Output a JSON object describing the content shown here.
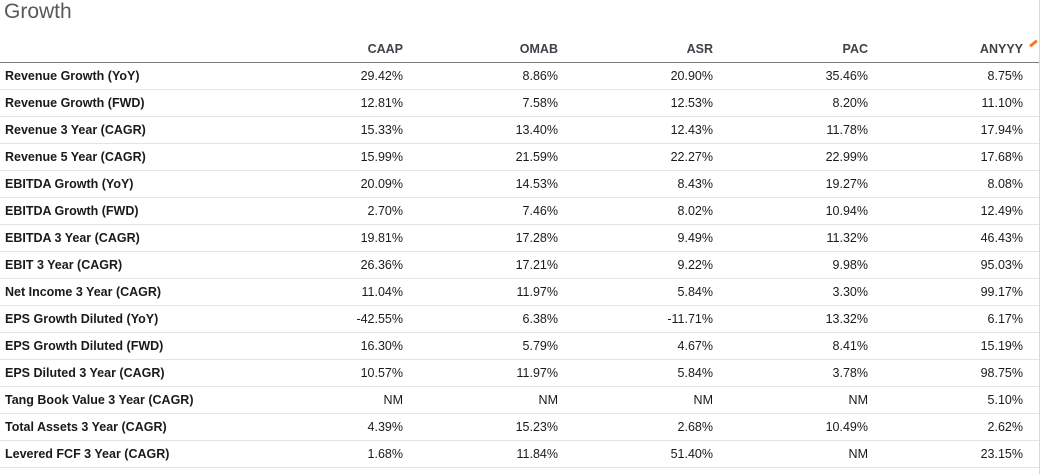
{
  "chart_data": {
    "type": "table",
    "title": "Growth",
    "columns": [
      "CAAP",
      "OMAB",
      "ASR",
      "PAC",
      "ANYYY"
    ],
    "rows": [
      {
        "label": "Revenue Growth (YoY)",
        "values": [
          "29.42%",
          "8.86%",
          "20.90%",
          "35.46%",
          "8.75%"
        ]
      },
      {
        "label": "Revenue Growth (FWD)",
        "values": [
          "12.81%",
          "7.58%",
          "12.53%",
          "8.20%",
          "11.10%"
        ]
      },
      {
        "label": "Revenue 3 Year (CAGR)",
        "values": [
          "15.33%",
          "13.40%",
          "12.43%",
          "11.78%",
          "17.94%"
        ]
      },
      {
        "label": "Revenue 5 Year (CAGR)",
        "values": [
          "15.99%",
          "21.59%",
          "22.27%",
          "22.99%",
          "17.68%"
        ]
      },
      {
        "label": "EBITDA Growth (YoY)",
        "values": [
          "20.09%",
          "14.53%",
          "8.43%",
          "19.27%",
          "8.08%"
        ]
      },
      {
        "label": "EBITDA Growth (FWD)",
        "values": [
          "2.70%",
          "7.46%",
          "8.02%",
          "10.94%",
          "12.49%"
        ]
      },
      {
        "label": "EBITDA 3 Year (CAGR)",
        "values": [
          "19.81%",
          "17.28%",
          "9.49%",
          "11.32%",
          "46.43%"
        ]
      },
      {
        "label": "EBIT 3 Year (CAGR)",
        "values": [
          "26.36%",
          "17.21%",
          "9.22%",
          "9.98%",
          "95.03%"
        ]
      },
      {
        "label": "Net Income 3 Year (CAGR)",
        "values": [
          "11.04%",
          "11.97%",
          "5.84%",
          "3.30%",
          "99.17%"
        ]
      },
      {
        "label": "EPS Growth Diluted (YoY)",
        "values": [
          "-42.55%",
          "6.38%",
          "-11.71%",
          "13.32%",
          "6.17%"
        ]
      },
      {
        "label": "EPS Growth Diluted (FWD)",
        "values": [
          "16.30%",
          "5.79%",
          "4.67%",
          "8.41%",
          "15.19%"
        ]
      },
      {
        "label": "EPS Diluted 3 Year (CAGR)",
        "values": [
          "10.57%",
          "11.97%",
          "5.84%",
          "3.78%",
          "98.75%"
        ]
      },
      {
        "label": "Tang Book Value 3 Year (CAGR)",
        "values": [
          "NM",
          "NM",
          "NM",
          "NM",
          "5.10%"
        ]
      },
      {
        "label": "Total Assets 3 Year (CAGR)",
        "values": [
          "4.39%",
          "15.23%",
          "2.68%",
          "10.49%",
          "2.62%"
        ]
      },
      {
        "label": "Levered FCF 3 Year (CAGR)",
        "values": [
          "1.68%",
          "11.84%",
          "51.40%",
          "NM",
          "23.15%"
        ]
      }
    ],
    "layout_hints": {
      "value_alignment": "right",
      "grid": "horizontal-rules-only"
    }
  },
  "colors": {
    "title_gray": "#58595b",
    "header_text": "#3e434a",
    "body_text": "#1a1a1a",
    "header_rule": "#7c7c7c",
    "row_rule": "#e4e4e4",
    "right_border": "#d8d8d8",
    "sort_indicator_orange": "#f97a1f"
  }
}
